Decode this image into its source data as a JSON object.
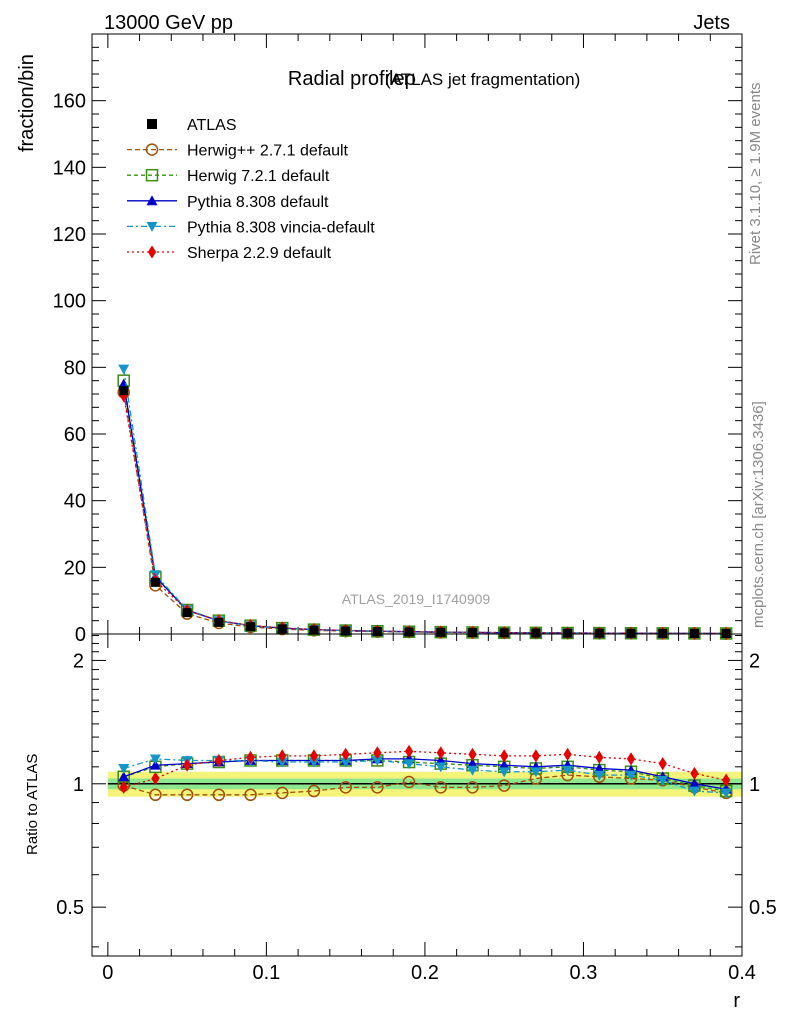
{
  "header": {
    "left": "13000 GeV pp",
    "right": "Jets"
  },
  "side": {
    "rivet": "Rivet 3.1.10, ≥ 1.9M events",
    "mcplots": "mcplots.cern.ch [arXiv:1306.3436]"
  },
  "chart_data": {
    "type": "line",
    "title": "Radial profileρ",
    "subtitle": "(ATLAS jet fragmentation)",
    "watermark": "ATLAS_2019_I1740909",
    "xlabel": "r",
    "ylabel": "fraction/bin",
    "ratio_ylabel": "Ratio to ATLAS",
    "xlim": [
      -0.01,
      0.4
    ],
    "ylim": [
      0,
      180
    ],
    "ratio_ylim": [
      0.38,
      2.32
    ],
    "ratio_scale": "log",
    "x_ticks": [
      0,
      0.1,
      0.2,
      0.3,
      0.4
    ],
    "x_tick_labels": [
      "0",
      "0.1",
      "0.2",
      "0.3",
      "0.4"
    ],
    "y_ticks": [
      0,
      20,
      40,
      60,
      80,
      100,
      120,
      140,
      160
    ],
    "y_tick_labels": [
      "0",
      "20",
      "40",
      "60",
      "80",
      "100",
      "120",
      "140",
      "160"
    ],
    "ratio_ticks": [
      0.5,
      1,
      2
    ],
    "ratio_tick_labels": [
      "0.5",
      "1",
      "2"
    ],
    "legend_position": "top-left",
    "x": [
      0.01,
      0.03,
      0.05,
      0.07,
      0.09,
      0.11,
      0.13,
      0.15,
      0.17,
      0.19,
      0.21,
      0.23,
      0.25,
      0.27,
      0.29,
      0.31,
      0.33,
      0.35,
      0.37,
      0.39
    ],
    "reference": {
      "name": "ATLAS",
      "color": "#000000",
      "values": [
        73.0,
        15.5,
        6.4,
        3.5,
        2.2,
        1.55,
        1.15,
        0.9,
        0.72,
        0.6,
        0.5,
        0.42,
        0.36,
        0.31,
        0.27,
        0.24,
        0.21,
        0.19,
        0.17,
        0.15
      ]
    },
    "series": [
      {
        "name": "Herwig++ 2.7.1 default",
        "color": "#a0520a",
        "marker": "circle-open",
        "dash": "5,3",
        "values": [
          72.5,
          14.6,
          6.1,
          3.3,
          2.1,
          1.47,
          1.1,
          0.88,
          0.7,
          0.6,
          0.48,
          0.41,
          0.35,
          0.32,
          0.28,
          0.25,
          0.22,
          0.19,
          0.17,
          0.15
        ],
        "ratio": [
          0.99,
          0.94,
          0.94,
          0.94,
          0.94,
          0.95,
          0.96,
          0.98,
          0.98,
          1.01,
          0.98,
          0.98,
          0.99,
          1.03,
          1.05,
          1.04,
          1.03,
          1.02,
          0.98,
          0.95
        ]
      },
      {
        "name": "Herwig 7.2.1 default",
        "color": "#3c8c14",
        "marker": "square-open",
        "dash": "4,3",
        "values": [
          76.0,
          17.0,
          7.2,
          4.0,
          2.5,
          1.77,
          1.31,
          1.03,
          0.82,
          0.68,
          0.56,
          0.47,
          0.4,
          0.34,
          0.3,
          0.26,
          0.23,
          0.2,
          0.17,
          0.15
        ],
        "ratio": [
          1.04,
          1.1,
          1.12,
          1.13,
          1.14,
          1.14,
          1.14,
          1.14,
          1.14,
          1.13,
          1.12,
          1.11,
          1.1,
          1.09,
          1.1,
          1.08,
          1.07,
          1.03,
          0.99,
          0.96
        ]
      },
      {
        "name": "Pythia 8.308 default",
        "color": "#0000cc",
        "marker": "triangle-up",
        "dash": "",
        "values": [
          75.0,
          17.2,
          7.1,
          3.95,
          2.5,
          1.77,
          1.32,
          1.03,
          0.83,
          0.7,
          0.57,
          0.47,
          0.4,
          0.34,
          0.3,
          0.26,
          0.23,
          0.2,
          0.17,
          0.15
        ],
        "ratio": [
          1.04,
          1.11,
          1.12,
          1.13,
          1.14,
          1.14,
          1.14,
          1.14,
          1.15,
          1.15,
          1.14,
          1.12,
          1.11,
          1.1,
          1.11,
          1.09,
          1.08,
          1.04,
          1.0,
          0.97
        ]
      },
      {
        "name": "Pythia 8.308 vincia-default",
        "color": "#1496c8",
        "marker": "triangle-down",
        "dash": "6,3,2,3",
        "values": [
          79.5,
          17.8,
          7.3,
          4.0,
          2.5,
          1.76,
          1.31,
          1.02,
          0.83,
          0.68,
          0.56,
          0.46,
          0.39,
          0.33,
          0.29,
          0.25,
          0.22,
          0.19,
          0.16,
          0.14
        ],
        "ratio": [
          1.09,
          1.15,
          1.14,
          1.14,
          1.14,
          1.13,
          1.13,
          1.13,
          1.14,
          1.12,
          1.1,
          1.08,
          1.07,
          1.07,
          1.08,
          1.05,
          1.05,
          1.02,
          0.96,
          0.95
        ]
      },
      {
        "name": "Sherpa 2.2.9 default",
        "color": "#e60000",
        "marker": "diamond",
        "dash": "2,3",
        "values": [
          71.5,
          16.0,
          7.1,
          4.0,
          2.6,
          1.83,
          1.37,
          1.08,
          0.87,
          0.73,
          0.6,
          0.49,
          0.41,
          0.36,
          0.32,
          0.28,
          0.24,
          0.21,
          0.18,
          0.16
        ],
        "ratio": [
          0.98,
          1.03,
          1.11,
          1.14,
          1.16,
          1.17,
          1.17,
          1.18,
          1.19,
          1.2,
          1.19,
          1.18,
          1.17,
          1.17,
          1.18,
          1.16,
          1.15,
          1.12,
          1.06,
          1.02
        ]
      }
    ]
  }
}
